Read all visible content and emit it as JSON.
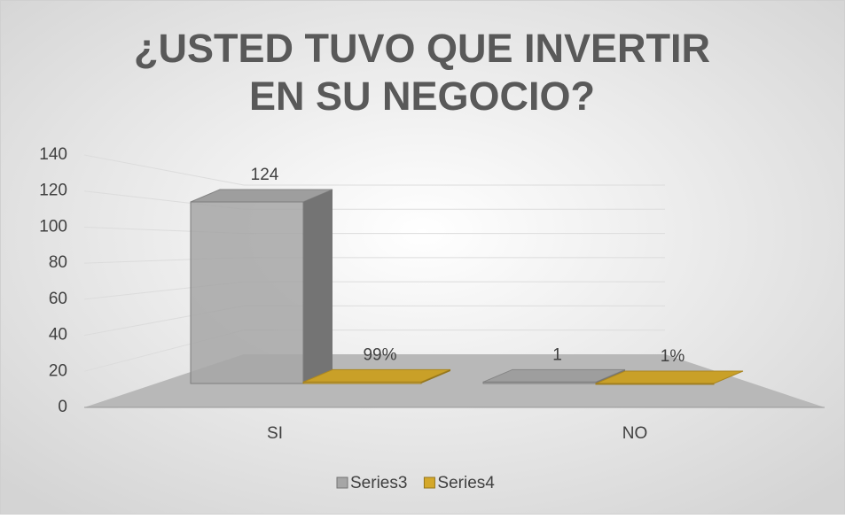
{
  "chart_data": {
    "type": "bar3d",
    "title": "¿USTED TUVO QUE INVERTIR EN SU NEGOCIO?",
    "categories": [
      "SI",
      "NO"
    ],
    "series": [
      {
        "name": "Series3",
        "color": "#a6a6a6",
        "values": [
          124,
          1
        ]
      },
      {
        "name": "Series4",
        "color": "#d4a82a",
        "values": [
          0.99,
          0.01
        ],
        "value_labels": [
          "99%",
          "1%"
        ]
      }
    ],
    "ylim": [
      0,
      140
    ],
    "yticks": [
      0,
      20,
      40,
      60,
      80,
      100,
      120,
      140
    ],
    "grid": true,
    "legend": "bottom"
  }
}
